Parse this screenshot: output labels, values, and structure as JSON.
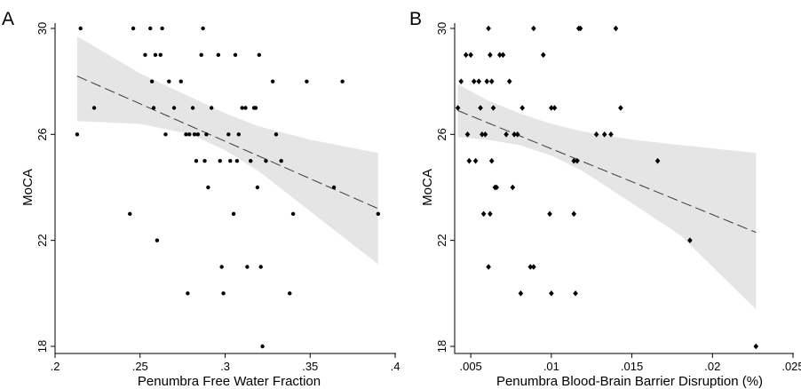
{
  "chart_data": [
    {
      "type": "scatter",
      "panel_label": "A",
      "xlabel": "Penumbra Free Water Fraction",
      "ylabel": "MoCA",
      "xlim": [
        0.2,
        0.4
      ],
      "ylim": [
        18,
        30
      ],
      "x_ticks": [
        0.2,
        0.25,
        0.3,
        0.35,
        0.4
      ],
      "x_tick_labels": [
        ".2",
        ".25",
        ".3",
        ".35",
        ".4"
      ],
      "y_ticks": [
        18,
        22,
        26,
        30
      ],
      "y_tick_labels": [
        "18",
        "22",
        "26",
        "30"
      ],
      "marker": "circle",
      "grid": false,
      "points": [
        {
          "x": 0.213,
          "y": 26
        },
        {
          "x": 0.215,
          "y": 30
        },
        {
          "x": 0.223,
          "y": 27
        },
        {
          "x": 0.244,
          "y": 23
        },
        {
          "x": 0.246,
          "y": 30
        },
        {
          "x": 0.253,
          "y": 29
        },
        {
          "x": 0.256,
          "y": 30
        },
        {
          "x": 0.257,
          "y": 28
        },
        {
          "x": 0.258,
          "y": 27
        },
        {
          "x": 0.259,
          "y": 29
        },
        {
          "x": 0.26,
          "y": 22
        },
        {
          "x": 0.262,
          "y": 29
        },
        {
          "x": 0.263,
          "y": 30
        },
        {
          "x": 0.265,
          "y": 26
        },
        {
          "x": 0.267,
          "y": 28
        },
        {
          "x": 0.27,
          "y": 27
        },
        {
          "x": 0.274,
          "y": 28
        },
        {
          "x": 0.277,
          "y": 26
        },
        {
          "x": 0.278,
          "y": 20
        },
        {
          "x": 0.279,
          "y": 26
        },
        {
          "x": 0.281,
          "y": 27
        },
        {
          "x": 0.282,
          "y": 26
        },
        {
          "x": 0.283,
          "y": 25
        },
        {
          "x": 0.284,
          "y": 26
        },
        {
          "x": 0.286,
          "y": 29
        },
        {
          "x": 0.287,
          "y": 30
        },
        {
          "x": 0.288,
          "y": 25
        },
        {
          "x": 0.289,
          "y": 26
        },
        {
          "x": 0.29,
          "y": 24
        },
        {
          "x": 0.292,
          "y": 27
        },
        {
          "x": 0.296,
          "y": 29
        },
        {
          "x": 0.297,
          "y": 25
        },
        {
          "x": 0.298,
          "y": 21
        },
        {
          "x": 0.299,
          "y": 20
        },
        {
          "x": 0.302,
          "y": 26
        },
        {
          "x": 0.303,
          "y": 25
        },
        {
          "x": 0.305,
          "y": 23
        },
        {
          "x": 0.306,
          "y": 29
        },
        {
          "x": 0.307,
          "y": 25
        },
        {
          "x": 0.308,
          "y": 26
        },
        {
          "x": 0.31,
          "y": 27
        },
        {
          "x": 0.312,
          "y": 27
        },
        {
          "x": 0.313,
          "y": 21
        },
        {
          "x": 0.315,
          "y": 25
        },
        {
          "x": 0.317,
          "y": 27
        },
        {
          "x": 0.318,
          "y": 27
        },
        {
          "x": 0.319,
          "y": 24
        },
        {
          "x": 0.32,
          "y": 29
        },
        {
          "x": 0.321,
          "y": 21
        },
        {
          "x": 0.322,
          "y": 18
        },
        {
          "x": 0.324,
          "y": 25
        },
        {
          "x": 0.328,
          "y": 28
        },
        {
          "x": 0.33,
          "y": 26
        },
        {
          "x": 0.333,
          "y": 25
        },
        {
          "x": 0.338,
          "y": 20
        },
        {
          "x": 0.34,
          "y": 23
        },
        {
          "x": 0.348,
          "y": 28
        },
        {
          "x": 0.364,
          "y": 24
        },
        {
          "x": 0.369,
          "y": 28
        },
        {
          "x": 0.39,
          "y": 23
        }
      ],
      "fit_line": {
        "x": [
          0.213,
          0.39
        ],
        "y": [
          28.2,
          23.2
        ],
        "style": "dashed"
      },
      "confidence_band": {
        "x": [
          0.213,
          0.25,
          0.28,
          0.3,
          0.32,
          0.35,
          0.39
        ],
        "upper": [
          29.7,
          28.3,
          27.4,
          26.8,
          26.3,
          25.8,
          25.3
        ],
        "lower": [
          26.5,
          26.4,
          26.0,
          25.4,
          24.6,
          23.1,
          21.1
        ]
      }
    },
    {
      "type": "scatter",
      "panel_label": "B",
      "xlabel": "Penumbra Blood-Brain Barrier Disruption (%)",
      "ylabel": "MoCA",
      "xlim": [
        0.004,
        0.025
      ],
      "ylim": [
        18,
        30
      ],
      "x_ticks": [
        0.005,
        0.01,
        0.015,
        0.02,
        0.025
      ],
      "x_tick_labels": [
        ".005",
        ".01",
        ".015",
        ".02",
        ".025"
      ],
      "y_ticks": [
        18,
        22,
        26,
        30
      ],
      "y_tick_labels": [
        "18",
        "22",
        "26",
        "30"
      ],
      "marker": "diamond",
      "grid": false,
      "points": [
        {
          "x": 0.0042,
          "y": 27
        },
        {
          "x": 0.0044,
          "y": 28
        },
        {
          "x": 0.0047,
          "y": 29
        },
        {
          "x": 0.0048,
          "y": 26
        },
        {
          "x": 0.0049,
          "y": 25
        },
        {
          "x": 0.005,
          "y": 29
        },
        {
          "x": 0.0052,
          "y": 28
        },
        {
          "x": 0.0053,
          "y": 25
        },
        {
          "x": 0.0055,
          "y": 28
        },
        {
          "x": 0.0056,
          "y": 27
        },
        {
          "x": 0.0057,
          "y": 26
        },
        {
          "x": 0.0058,
          "y": 23
        },
        {
          "x": 0.0059,
          "y": 26
        },
        {
          "x": 0.006,
          "y": 28
        },
        {
          "x": 0.0061,
          "y": 21
        },
        {
          "x": 0.0061,
          "y": 30
        },
        {
          "x": 0.0062,
          "y": 23
        },
        {
          "x": 0.0062,
          "y": 29
        },
        {
          "x": 0.0063,
          "y": 28
        },
        {
          "x": 0.0063,
          "y": 25
        },
        {
          "x": 0.0064,
          "y": 27
        },
        {
          "x": 0.0065,
          "y": 24
        },
        {
          "x": 0.0066,
          "y": 24
        },
        {
          "x": 0.0068,
          "y": 29
        },
        {
          "x": 0.007,
          "y": 29
        },
        {
          "x": 0.0072,
          "y": 26
        },
        {
          "x": 0.0074,
          "y": 28
        },
        {
          "x": 0.0076,
          "y": 24
        },
        {
          "x": 0.0077,
          "y": 26
        },
        {
          "x": 0.0079,
          "y": 26
        },
        {
          "x": 0.0081,
          "y": 20
        },
        {
          "x": 0.0082,
          "y": 27
        },
        {
          "x": 0.0087,
          "y": 21
        },
        {
          "x": 0.0089,
          "y": 21
        },
        {
          "x": 0.0089,
          "y": 30
        },
        {
          "x": 0.0095,
          "y": 29
        },
        {
          "x": 0.0099,
          "y": 23
        },
        {
          "x": 0.01,
          "y": 27
        },
        {
          "x": 0.01,
          "y": 20
        },
        {
          "x": 0.0102,
          "y": 27
        },
        {
          "x": 0.0114,
          "y": 23
        },
        {
          "x": 0.0114,
          "y": 25
        },
        {
          "x": 0.0115,
          "y": 20
        },
        {
          "x": 0.0116,
          "y": 25
        },
        {
          "x": 0.0117,
          "y": 30
        },
        {
          "x": 0.0118,
          "y": 30
        },
        {
          "x": 0.0128,
          "y": 26
        },
        {
          "x": 0.0133,
          "y": 26
        },
        {
          "x": 0.0137,
          "y": 26
        },
        {
          "x": 0.014,
          "y": 30
        },
        {
          "x": 0.0143,
          "y": 27
        },
        {
          "x": 0.0166,
          "y": 25
        },
        {
          "x": 0.0186,
          "y": 22
        },
        {
          "x": 0.0227,
          "y": 18
        }
      ],
      "fit_line": {
        "x": [
          0.0042,
          0.0227
        ],
        "y": [
          26.9,
          22.3
        ],
        "style": "dashed"
      },
      "confidence_band": {
        "x": [
          0.0042,
          0.006,
          0.008,
          0.01,
          0.012,
          0.015,
          0.018,
          0.0227
        ],
        "upper": [
          27.9,
          27.3,
          26.8,
          26.4,
          26.1,
          25.8,
          25.6,
          25.3
        ],
        "lower": [
          25.9,
          25.8,
          25.6,
          25.2,
          24.6,
          23.4,
          22.2,
          19.4
        ]
      }
    }
  ]
}
